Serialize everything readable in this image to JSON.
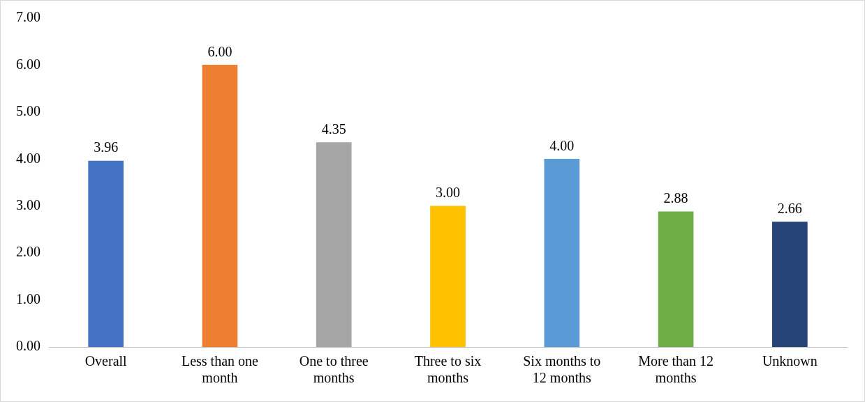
{
  "chart_data": {
    "type": "bar",
    "categories": [
      "Overall",
      "Less than one month",
      "One to three months",
      "Three to six months",
      "Six months to 12 months",
      "More than 12 months",
      "Unknown"
    ],
    "values": [
      3.96,
      6.0,
      4.35,
      3.0,
      4.0,
      2.88,
      2.66
    ],
    "colors": [
      "#4472c4",
      "#ed7d31",
      "#a5a5a5",
      "#ffc000",
      "#5b9bd5",
      "#70ad47",
      "#264478"
    ],
    "value_labels": [
      "3.96",
      "6.00",
      "4.35",
      "3.00",
      "4.00",
      "2.88",
      "2.66"
    ],
    "ylim": [
      0,
      7
    ],
    "yticks": [
      {
        "value": 0,
        "label": "0.00"
      },
      {
        "value": 1,
        "label": "1.00"
      },
      {
        "value": 2,
        "label": "2.00"
      },
      {
        "value": 3,
        "label": "3.00"
      },
      {
        "value": 4,
        "label": "4.00"
      },
      {
        "value": 5,
        "label": "5.00"
      },
      {
        "value": 6,
        "label": "6.00"
      },
      {
        "value": 7,
        "label": "7.00"
      }
    ],
    "grid": false,
    "legend": false
  }
}
